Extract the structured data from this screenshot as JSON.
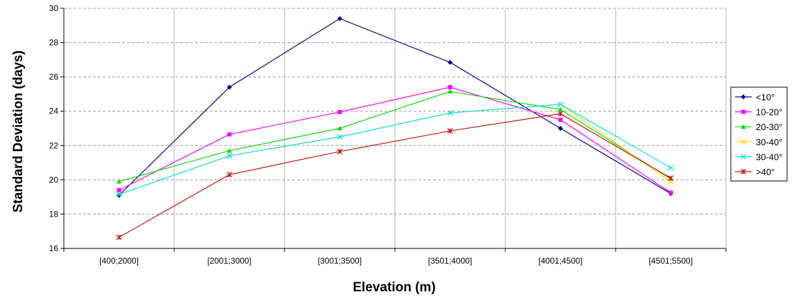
{
  "chart_data": {
    "type": "line",
    "title": "",
    "xlabel": "Elevation (m)",
    "ylabel": "Standard Deviation (days)",
    "categories": [
      "[400;2000]",
      "[2001;3000]",
      "[3001;3500]",
      "[3501;4000]",
      "[4001;4500]",
      "[4501;5500]"
    ],
    "ylim": [
      16,
      30
    ],
    "yticks": [
      16,
      18,
      20,
      22,
      24,
      26,
      28,
      30
    ],
    "grid": true,
    "legend_position": "right",
    "series": [
      {
        "name": "<10°",
        "color": "#00008B",
        "marker": "diamond",
        "values": [
          19.1,
          25.4,
          29.4,
          26.85,
          23.0,
          19.2
        ]
      },
      {
        "name": "10-20°",
        "color": "#FF00FF",
        "marker": "square",
        "values": [
          19.4,
          22.65,
          23.95,
          25.4,
          23.5,
          19.25
        ]
      },
      {
        "name": "20-30°",
        "color": "#00DD00",
        "marker": "triangle",
        "values": [
          19.9,
          21.7,
          23.0,
          25.15,
          24.1,
          20.05
        ]
      },
      {
        "name": "30-40°",
        "color": "#FFD700",
        "marker": "x",
        "values": [
          19.15,
          21.4,
          22.5,
          23.9,
          24.4,
          19.9
        ]
      },
      {
        "name": "30-40°",
        "color": "#00E5E5",
        "marker": "x",
        "values": [
          19.15,
          21.4,
          22.5,
          23.9,
          24.4,
          20.7
        ]
      },
      {
        "name": ">40°",
        "color": "#CC1111",
        "marker": "star",
        "values": [
          16.65,
          20.3,
          21.65,
          22.85,
          23.85,
          20.1
        ]
      }
    ]
  }
}
